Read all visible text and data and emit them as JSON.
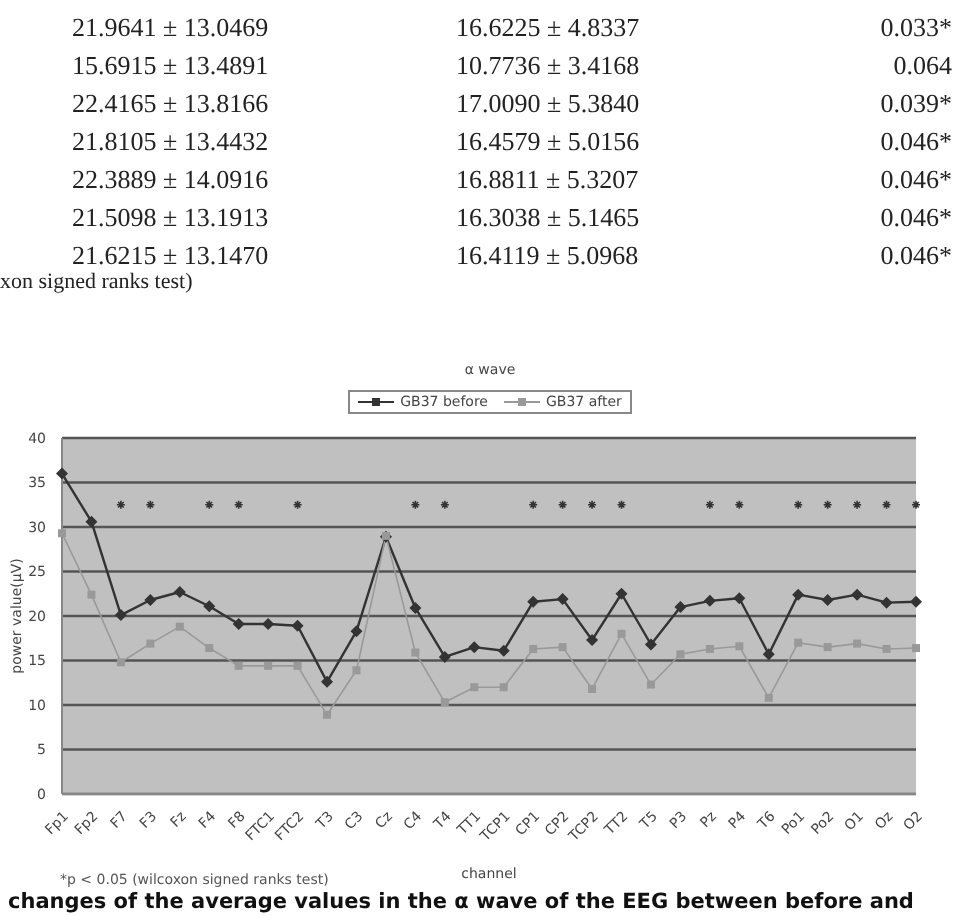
{
  "chart_data": {
    "type": "line",
    "title": "α wave",
    "xlabel": "channel",
    "ylabel": "power value(μV)",
    "categories": [
      "Fp1",
      "Fp2",
      "F7",
      "F3",
      "Fz",
      "F4",
      "F8",
      "FTC1",
      "FTC2",
      "T3",
      "C3",
      "Cz",
      "C4",
      "T4",
      "TT1",
      "TCP1",
      "CP1",
      "CP2",
      "TCP2",
      "TT2",
      "T5",
      "P3",
      "Pz",
      "P4",
      "T6",
      "Po1",
      "Po2",
      "O1",
      "Oz",
      "O2"
    ],
    "series": [
      {
        "name": "GB37 before",
        "color": "#333333",
        "marker": "diamond",
        "values": [
          36.0,
          30.6,
          20.1,
          21.8,
          22.7,
          21.1,
          19.1,
          19.1,
          18.9,
          12.6,
          18.3,
          28.9,
          20.9,
          15.4,
          16.5,
          16.1,
          21.6,
          21.9,
          17.3,
          22.5,
          16.8,
          21.0,
          21.7,
          22.0,
          15.7,
          22.4,
          21.8,
          22.4,
          21.5,
          21.6
        ]
      },
      {
        "name": "GB37 after",
        "color": "#999999",
        "marker": "square",
        "values": [
          29.3,
          22.4,
          14.8,
          16.9,
          18.8,
          16.4,
          14.4,
          14.4,
          14.4,
          8.9,
          13.9,
          29.0,
          15.9,
          10.3,
          12.0,
          12.0,
          16.3,
          16.5,
          11.8,
          18.0,
          12.3,
          15.7,
          16.3,
          16.6,
          10.8,
          17.0,
          16.5,
          16.9,
          16.3,
          16.4
        ]
      },
      {
        "type": "scatter",
        "color": "#333333",
        "marker": "cross",
        "values": [
          null,
          null,
          32.5,
          32.5,
          null,
          32.5,
          32.5,
          null,
          32.5,
          null,
          null,
          null,
          32.5,
          32.5,
          null,
          null,
          32.5,
          32.5,
          32.5,
          32.5,
          null,
          null,
          32.5,
          32.5,
          null,
          32.5,
          32.5,
          32.5,
          32.5,
          32.5
        ]
      }
    ],
    "ylim": [
      0,
      40
    ],
    "yticks": [
      0,
      5,
      10,
      15,
      20,
      25,
      30,
      35,
      40
    ],
    "grid": "y",
    "legend": "top",
    "line_style": "solid",
    "annotations": [
      "21.9641 ± 13.0469",
      "16.6225 ± 4.8337",
      "0.033*",
      "15.6915 ± 13.4891",
      "10.7736 ± 3.4168",
      "0.064",
      "22.4165 ± 13.8166",
      "17.0090 ± 5.3840",
      "0.039*",
      "21.8105 ± 13.4432",
      "16.4579 ± 5.0156",
      "0.046*",
      "22.3889 ± 14.0916",
      "16.8811 ± 5.3207",
      "0.046*",
      "21.5098 ± 13.1913",
      "16.3038 ± 5.1465",
      "0.046*",
      "21.6215 ± 13.1470",
      "16.4119 ± 5.0968",
      "0.046*",
      "xon signed ranks test)",
      "*p < 0.05 (wilcoxon signed ranks test)",
      "changes of the average values in the α wave of the EEG between before and"
    ]
  }
}
